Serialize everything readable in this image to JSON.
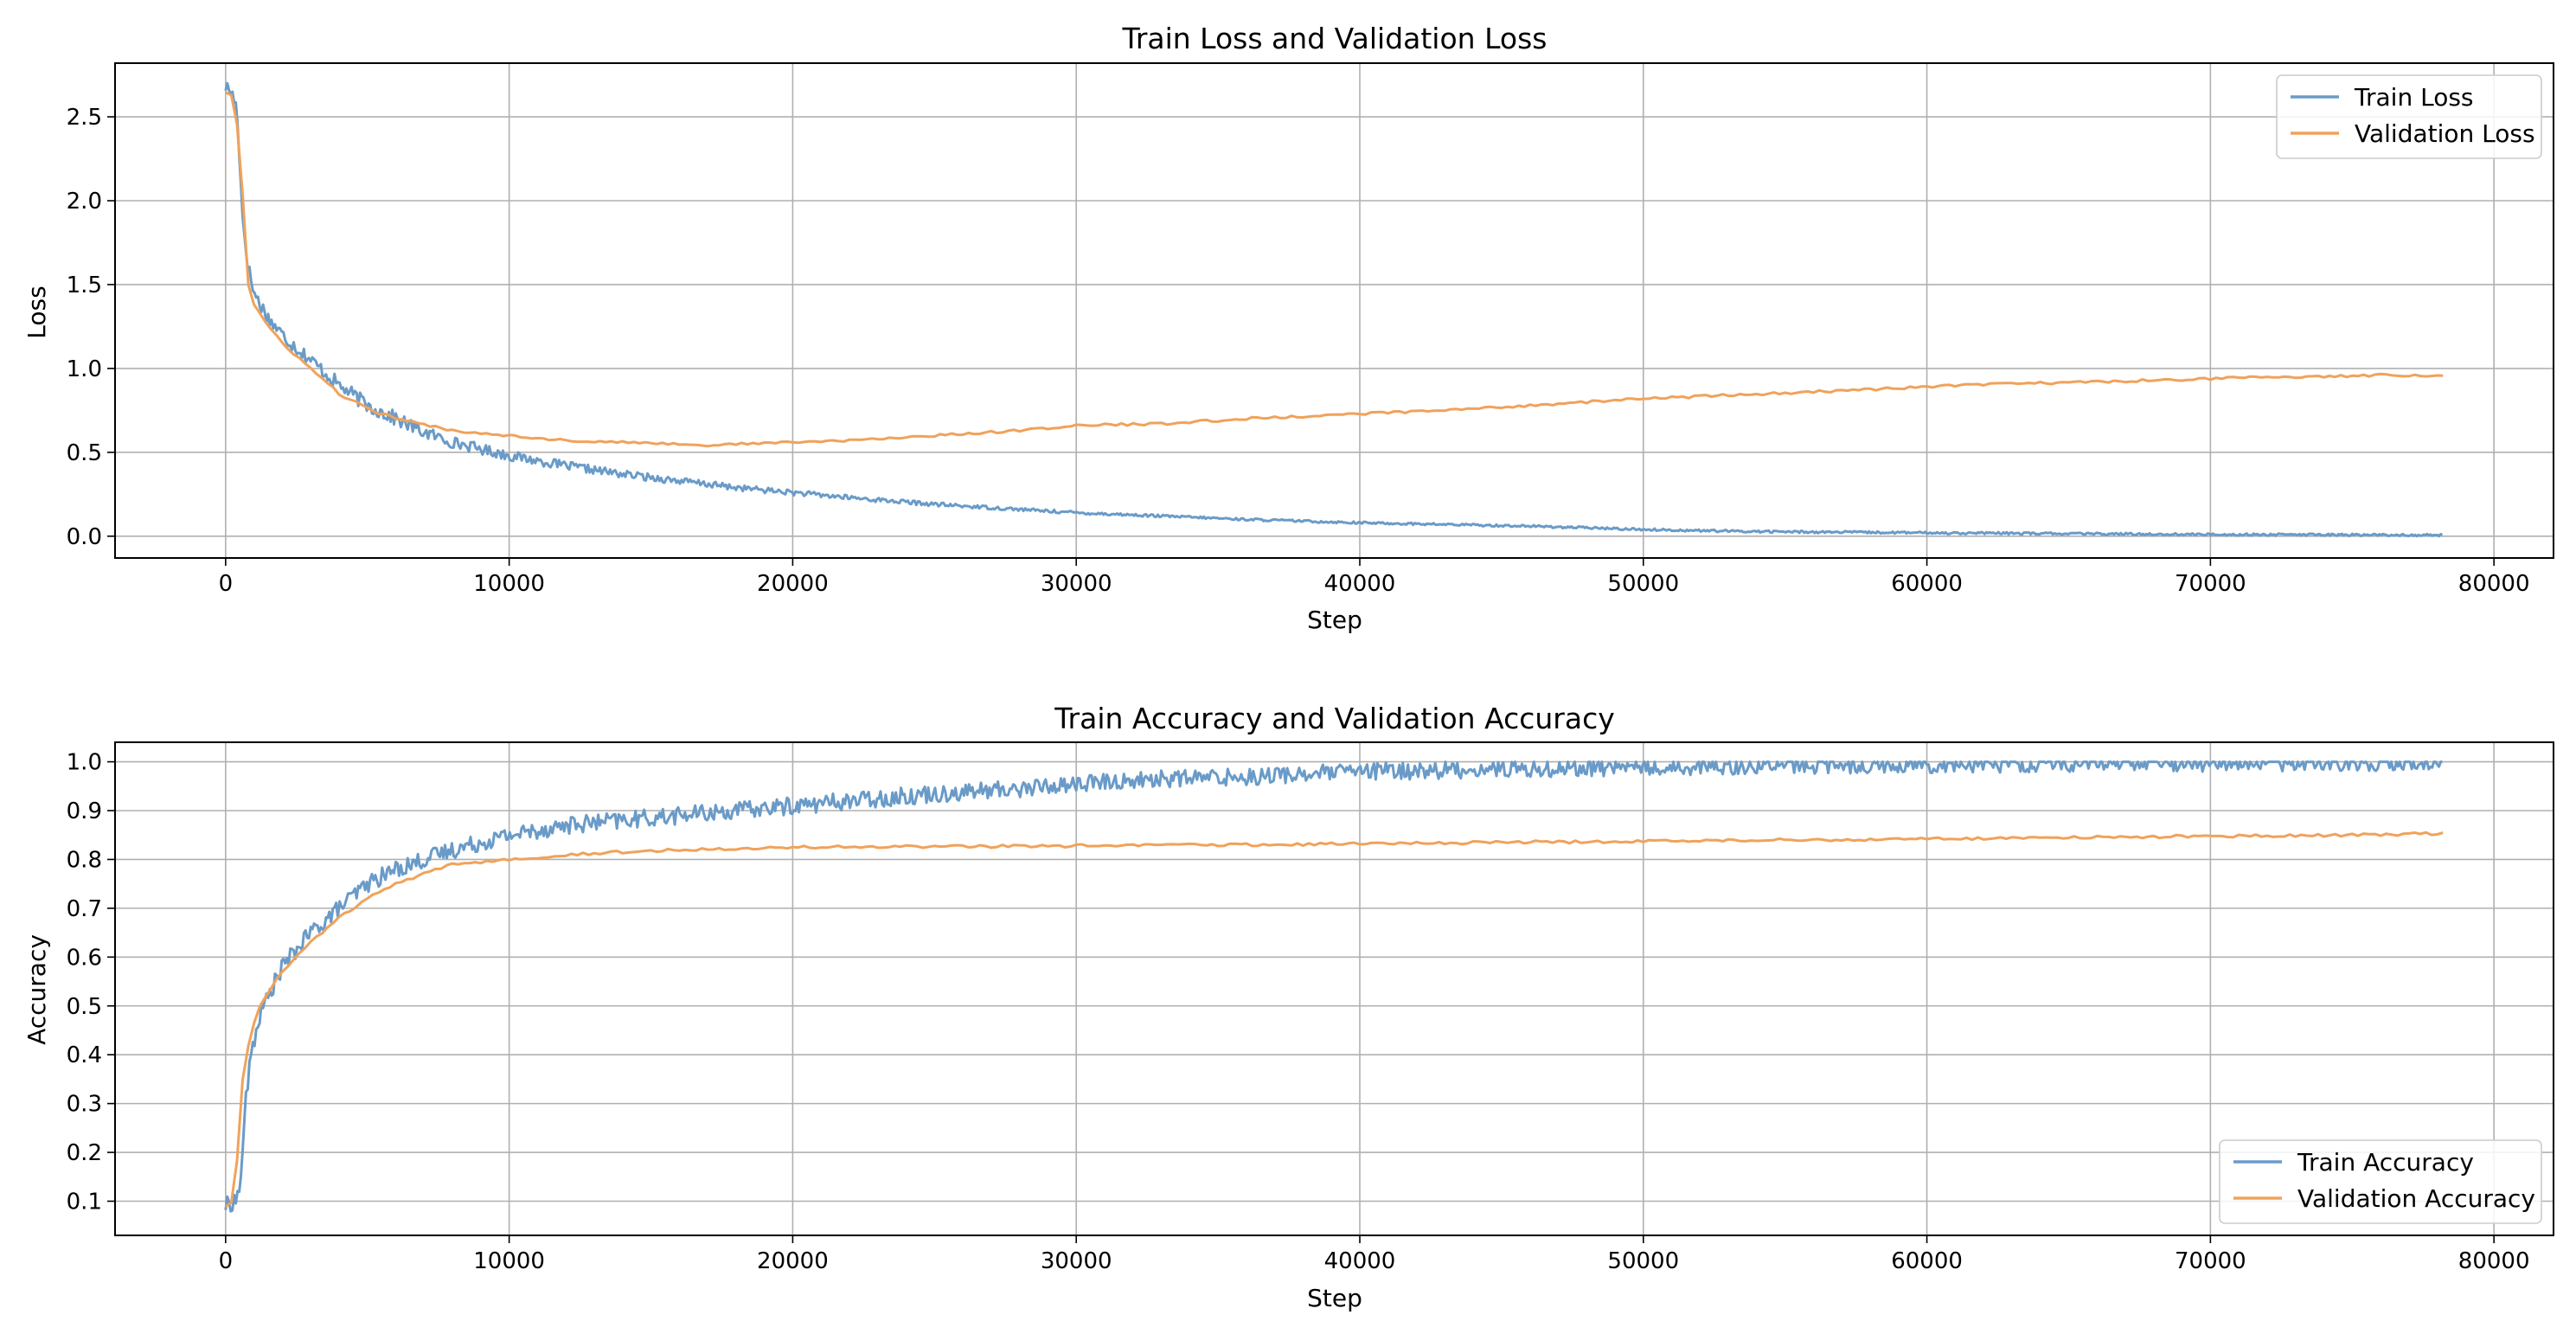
{
  "chart_data": [
    {
      "type": "line",
      "title": "Train Loss and Validation Loss",
      "xlabel": "Step",
      "ylabel": "Loss",
      "xlim": [
        -3900,
        82100
      ],
      "ylim": [
        -0.13,
        2.82
      ],
      "xticks": [
        0,
        10000,
        20000,
        30000,
        40000,
        50000,
        60000,
        70000,
        80000
      ],
      "yticks": [
        0.0,
        0.5,
        1.0,
        1.5,
        2.0,
        2.5
      ],
      "ytick_format": 1,
      "grid": true,
      "legend": "top-right",
      "series": [
        {
          "name": "Train Loss",
          "color": "#6a9bc8",
          "noise": 0.045,
          "x": [
            0,
            200,
            400,
            600,
            800,
            1000,
            1500,
            2000,
            3000,
            4000,
            5000,
            6000,
            7000,
            8000,
            9000,
            10000,
            12000,
            14000,
            16000,
            18000,
            20000,
            22000,
            25000,
            28000,
            30000,
            33000,
            36000,
            38000,
            40000,
            43000,
            46000,
            48000,
            50000,
            53000,
            56000,
            60000,
            65000,
            70000,
            75000,
            78200
          ],
          "y": [
            2.68,
            2.65,
            2.55,
            1.9,
            1.6,
            1.45,
            1.3,
            1.2,
            1.05,
            0.9,
            0.78,
            0.7,
            0.62,
            0.56,
            0.52,
            0.48,
            0.42,
            0.37,
            0.33,
            0.29,
            0.26,
            0.23,
            0.19,
            0.16,
            0.14,
            0.12,
            0.1,
            0.09,
            0.08,
            0.07,
            0.06,
            0.05,
            0.04,
            0.03,
            0.025,
            0.02,
            0.015,
            0.01,
            0.008,
            0.006
          ]
        },
        {
          "name": "Validation Loss",
          "color": "#f0a25b",
          "noise": 0.008,
          "x": [
            0,
            300,
            500,
            800,
            1000,
            1500,
            2000,
            3000,
            4000,
            5000,
            6000,
            8000,
            10000,
            12000,
            14000,
            16000,
            17000,
            18000,
            20000,
            22000,
            25000,
            28000,
            30000,
            33000,
            36000,
            40000,
            43000,
            46000,
            50000,
            53000,
            56000,
            60000,
            63000,
            66000,
            70000,
            73000,
            76000,
            78200
          ],
          "y": [
            2.65,
            2.62,
            2.3,
            1.5,
            1.38,
            1.25,
            1.15,
            1.0,
            0.85,
            0.76,
            0.7,
            0.63,
            0.6,
            0.57,
            0.56,
            0.55,
            0.54,
            0.55,
            0.56,
            0.57,
            0.6,
            0.63,
            0.66,
            0.67,
            0.7,
            0.73,
            0.75,
            0.78,
            0.82,
            0.84,
            0.86,
            0.89,
            0.91,
            0.92,
            0.94,
            0.95,
            0.96,
            0.96
          ]
        }
      ]
    },
    {
      "type": "line",
      "title": "Train Accuracy and Validation Accuracy",
      "xlabel": "Step",
      "ylabel": "Accuracy",
      "xlim": [
        -3900,
        82100
      ],
      "ylim": [
        0.03,
        1.04
      ],
      "xticks": [
        0,
        10000,
        20000,
        30000,
        40000,
        50000,
        60000,
        70000,
        80000
      ],
      "yticks": [
        0.1,
        0.2,
        0.3,
        0.4,
        0.5,
        0.6,
        0.7,
        0.8,
        0.9,
        1.0
      ],
      "ytick_format": 1,
      "grid": true,
      "legend": "bottom-right",
      "series": [
        {
          "name": "Train Accuracy",
          "color": "#6a9bc8",
          "noise": 0.018,
          "x": [
            0,
            300,
            500,
            700,
            900,
            1200,
            1500,
            2000,
            3000,
            4000,
            5000,
            6000,
            7000,
            8000,
            10000,
            12000,
            14000,
            16000,
            18000,
            20000,
            22000,
            25000,
            28000,
            30000,
            33000,
            36000,
            40000,
            45000,
            50000,
            55000,
            60000,
            65000,
            70000,
            75000,
            78200
          ],
          "y": [
            0.09,
            0.1,
            0.12,
            0.3,
            0.4,
            0.48,
            0.52,
            0.58,
            0.65,
            0.7,
            0.75,
            0.78,
            0.8,
            0.82,
            0.85,
            0.87,
            0.88,
            0.89,
            0.9,
            0.91,
            0.92,
            0.935,
            0.945,
            0.955,
            0.965,
            0.97,
            0.98,
            0.985,
            0.99,
            0.993,
            0.995,
            0.997,
            0.998,
            0.999,
            1.0
          ]
        },
        {
          "name": "Validation Accuracy",
          "color": "#f0a25b",
          "noise": 0.003,
          "x": [
            0,
            300,
            600,
            900,
            1200,
            1500,
            2000,
            3000,
            4000,
            5000,
            6000,
            7000,
            8000,
            10000,
            12000,
            14000,
            16000,
            18000,
            20000,
            25000,
            30000,
            35000,
            40000,
            45000,
            50000,
            55000,
            60000,
            65000,
            70000,
            75000,
            78200
          ],
          "y": [
            0.09,
            0.1,
            0.35,
            0.45,
            0.5,
            0.53,
            0.57,
            0.63,
            0.68,
            0.72,
            0.75,
            0.77,
            0.79,
            0.8,
            0.81,
            0.815,
            0.82,
            0.823,
            0.825,
            0.826,
            0.828,
            0.83,
            0.832,
            0.835,
            0.837,
            0.84,
            0.842,
            0.845,
            0.848,
            0.85,
            0.853
          ]
        }
      ]
    }
  ]
}
